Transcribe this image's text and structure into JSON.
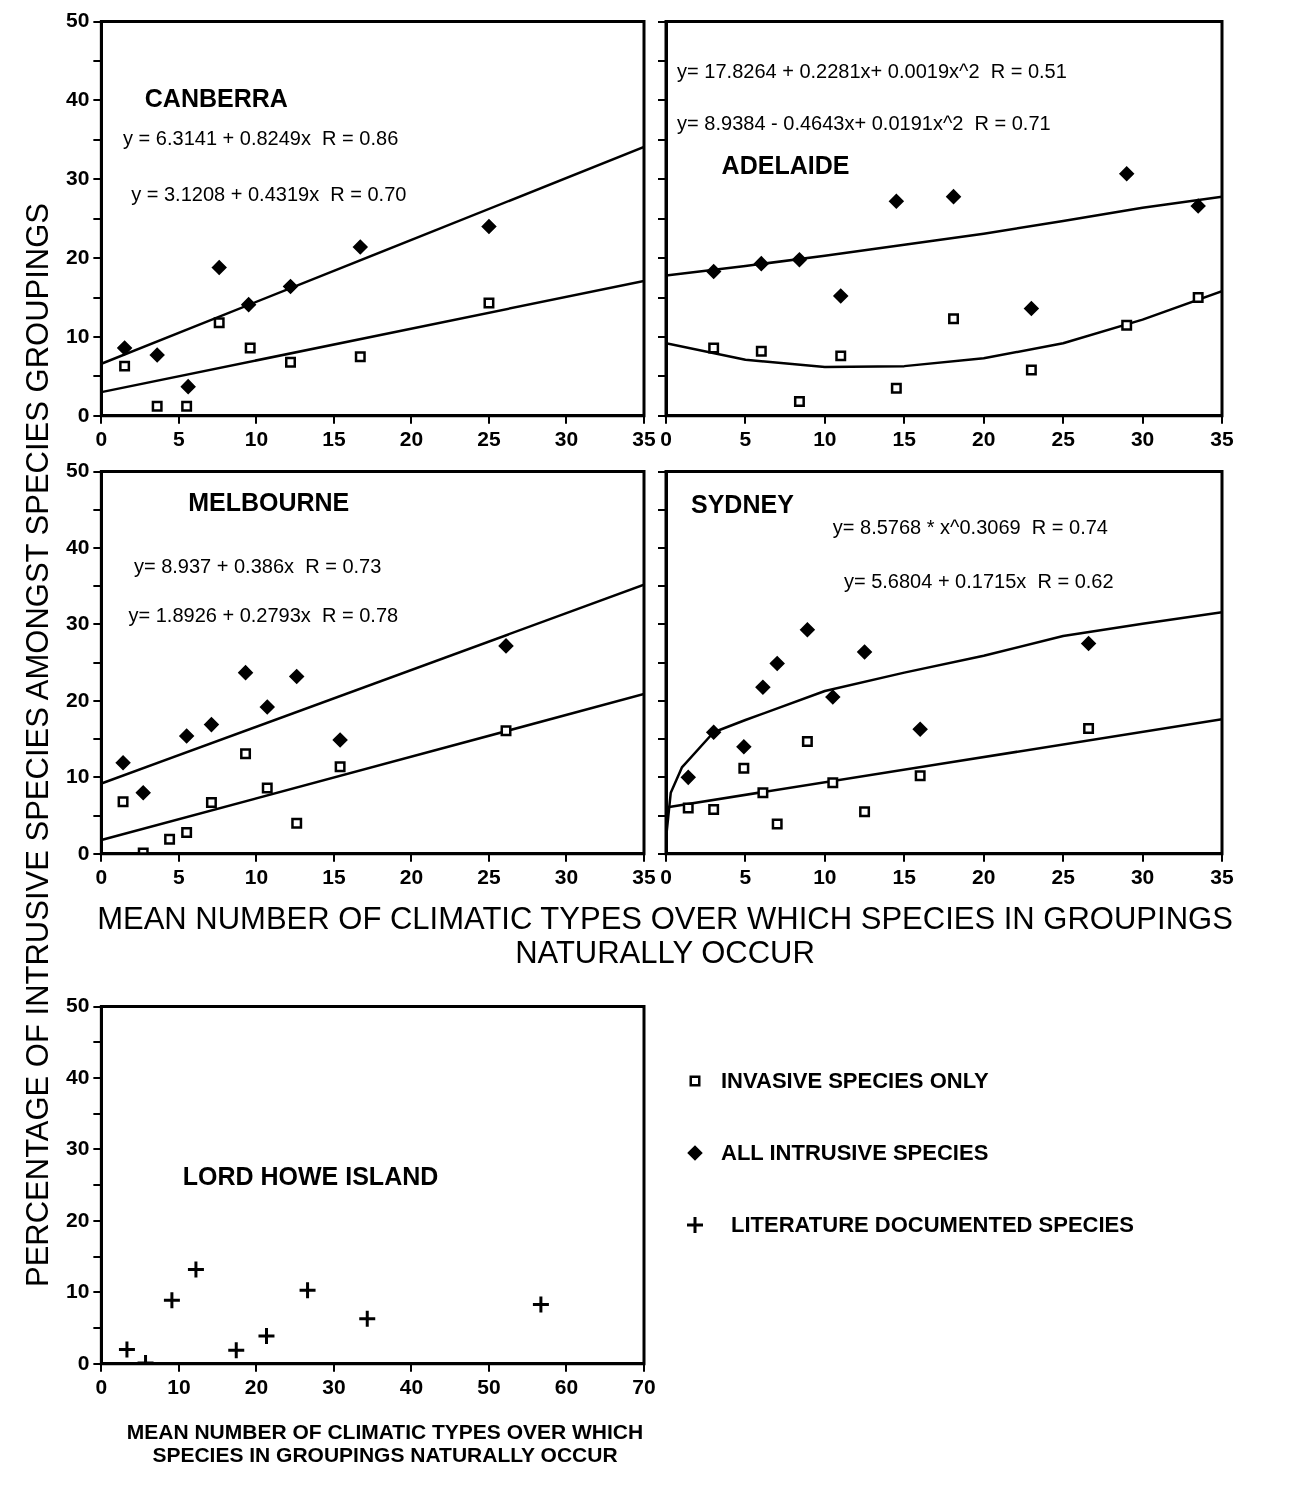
{
  "chart_data": [
    {
      "type": "scatter",
      "title": "CANBERRA",
      "ylabel": "PERCENTAGE OF INTRUSIVE SPECIES AMONGST SPECIES GROUPINGS",
      "annotations": [
        "y = 6.3141 + 0.8249x  R = 0.86",
        "y = 3.1208 + 0.4319x  R = 0.70"
      ],
      "xlim": [
        0,
        35
      ],
      "xticks": [
        0,
        5,
        10,
        15,
        20,
        25,
        30,
        35
      ],
      "ylim": [
        0,
        50
      ],
      "yticks": [
        0,
        {
          "value": 5,
          "label": null
        },
        10,
        {
          "value": 15,
          "label": null
        },
        20,
        {
          "value": 25,
          "label": null
        },
        30,
        {
          "value": 35,
          "label": null
        },
        40,
        {
          "value": 45,
          "label": null
        },
        50
      ],
      "grid": false,
      "legend": "bottom right",
      "series": [
        {
          "name": "INVASIVE SPECIES ONLY",
          "color": "#000000",
          "marker": "square",
          "x": [
            1.5,
            3.6,
            5.5,
            7.6,
            9.6,
            12.2,
            16.7,
            25.0
          ],
          "values": [
            6.3,
            1.2,
            1.2,
            11.8,
            8.6,
            6.8,
            7.5,
            14.3
          ]
        },
        {
          "name": "ALL INTRUSIVE SPECIES",
          "color": "#000000",
          "marker": "diamond",
          "x": [
            1.5,
            3.6,
            5.6,
            7.6,
            9.5,
            12.2,
            16.7,
            25.0
          ],
          "values": [
            8.6,
            7.7,
            3.7,
            18.8,
            14.1,
            16.4,
            21.4,
            24.0
          ]
        },
        {
          "type": "line",
          "color": "#000000",
          "marker": "none",
          "x": [
            0,
            35
          ],
          "values": [
            6.6,
            34.1
          ]
        },
        {
          "type": "line",
          "color": "#000000",
          "marker": "none",
          "x": [
            0,
            35
          ],
          "values": [
            3.0,
            17.1
          ]
        }
      ]
    },
    {
      "type": "scatter",
      "title": "ADELAIDE",
      "annotations": [
        "y= 17.8264 + 0.2281x+ 0.0019x^2  R = 0.51",
        "y= 8.9384 - 0.4643x+ 0.0191x^2  R = 0.71"
      ],
      "xlim": [
        0,
        35
      ],
      "xticks": [
        0,
        5,
        10,
        15,
        20,
        25,
        30,
        35
      ],
      "ylim": [
        0,
        50
      ],
      "yticks": [
        0,
        {
          "value": 5,
          "label": null
        },
        10,
        {
          "value": 15,
          "label": null
        },
        20,
        {
          "value": 25,
          "label": null
        },
        30,
        {
          "value": 35,
          "label": null
        },
        40,
        {
          "value": 45,
          "label": null
        },
        50
      ],
      "grid": false,
      "tick_labels": "x",
      "series": [
        {
          "color": "#000000",
          "marker": "square",
          "x": [
            3.0,
            6.0,
            8.4,
            11.0,
            14.5,
            18.1,
            23.0,
            29.0,
            33.5
          ],
          "values": [
            8.6,
            8.2,
            1.8,
            7.6,
            3.5,
            12.3,
            5.8,
            11.5,
            15.0
          ]
        },
        {
          "color": "#000000",
          "marker": "diamond",
          "x": [
            3.0,
            6.0,
            8.4,
            11.0,
            14.5,
            18.1,
            23.0,
            29.0,
            33.5
          ],
          "values": [
            18.3,
            19.3,
            19.8,
            15.2,
            27.2,
            27.8,
            13.6,
            30.7,
            26.6
          ]
        },
        {
          "type": "line",
          "color": "#000000",
          "marker": "none",
          "x": [
            0,
            5,
            10,
            15,
            20,
            25,
            30,
            35
          ],
          "values": [
            17.8,
            19.0,
            20.3,
            21.7,
            23.1,
            24.7,
            26.4,
            27.8
          ]
        },
        {
          "type": "line",
          "color": "#000000",
          "marker": "none",
          "x": [
            0,
            5,
            10,
            15,
            20,
            25,
            30,
            35
          ],
          "values": [
            9.2,
            7.1,
            6.2,
            6.3,
            7.3,
            9.2,
            12.2,
            15.8
          ]
        }
      ]
    },
    {
      "type": "scatter",
      "title": "MELBOURNE",
      "xlabel": "MEAN NUMBER OF CLIMATIC TYPES OVER WHICH SPECIES IN GROUPINGS NATURALLY OCCUR",
      "annotations": [
        "y= 8.937 + 0.386x  R = 0.73",
        "y= 1.8926 + 0.2793x  R = 0.78"
      ],
      "xlim": [
        0,
        35
      ],
      "xticks": [
        0,
        5,
        10,
        15,
        20,
        25,
        30,
        35
      ],
      "ylim": [
        0,
        50
      ],
      "yticks": [
        0,
        {
          "value": 5,
          "label": null
        },
        10,
        {
          "value": 15,
          "label": null
        },
        20,
        {
          "value": 25,
          "label": null
        },
        30,
        {
          "value": 35,
          "label": null
        },
        40,
        {
          "value": 45,
          "label": null
        },
        50
      ],
      "grid": false,
      "series": [
        {
          "color": "#000000",
          "marker": "square",
          "x": [
            1.4,
            2.7,
            4.4,
            5.5,
            7.1,
            9.3,
            10.7,
            12.6,
            15.4,
            26.1
          ],
          "values": [
            6.8,
            0.1,
            1.9,
            2.8,
            6.7,
            13.1,
            8.6,
            4.0,
            11.4,
            16.1
          ]
        },
        {
          "color": "#000000",
          "marker": "diamond",
          "x": [
            1.4,
            2.7,
            5.5,
            7.1,
            9.3,
            10.7,
            12.6,
            15.4,
            26.1
          ],
          "values": [
            11.9,
            8.0,
            15.4,
            16.9,
            23.7,
            19.2,
            23.2,
            14.9,
            27.2
          ]
        },
        {
          "type": "line",
          "color": "#000000",
          "marker": "none",
          "x": [
            0,
            35
          ],
          "values": [
            9.2,
            35.2
          ]
        },
        {
          "type": "line",
          "color": "#000000",
          "marker": "none",
          "x": [
            0,
            35
          ],
          "values": [
            1.8,
            20.9
          ]
        }
      ]
    },
    {
      "type": "scatter",
      "title": "SYDNEY",
      "annotations": [
        "y= 8.5768 * x^0.3069  R = 0.74",
        "y= 5.6804 + 0.1715x  R = 0.62"
      ],
      "xlim": [
        0,
        35
      ],
      "xticks": [
        0,
        5,
        10,
        15,
        20,
        25,
        30,
        35
      ],
      "ylim": [
        0,
        50
      ],
      "yticks": [
        0,
        {
          "value": 5,
          "label": null
        },
        10,
        {
          "value": 15,
          "label": null
        },
        20,
        {
          "value": 25,
          "label": null
        },
        30,
        {
          "value": 35,
          "label": null
        },
        40,
        {
          "value": 45,
          "label": null
        },
        50
      ],
      "grid": false,
      "tick_labels": "x",
      "series": [
        {
          "color": "#000000",
          "marker": "square",
          "x": [
            1.4,
            3.0,
            4.9,
            6.1,
            7.0,
            8.9,
            10.5,
            12.5,
            16.0,
            26.6
          ],
          "values": [
            6.0,
            5.8,
            11.2,
            8.0,
            3.9,
            14.7,
            9.3,
            5.5,
            10.2,
            16.4
          ]
        },
        {
          "color": "#000000",
          "marker": "diamond",
          "x": [
            1.4,
            3.0,
            4.9,
            6.1,
            7.0,
            8.9,
            10.5,
            12.5,
            16.0,
            26.6
          ],
          "values": [
            10.0,
            15.9,
            14.0,
            21.8,
            24.9,
            29.3,
            20.5,
            26.4,
            16.3,
            27.5
          ]
        },
        {
          "type": "line",
          "color": "#000000",
          "marker": "none",
          "x": [
            0.05,
            0.3,
            1,
            3,
            5,
            10,
            15,
            20,
            25,
            30,
            35
          ],
          "values": [
            3.0,
            8.0,
            11.3,
            15.9,
            17.5,
            21.3,
            23.7,
            25.9,
            28.5,
            30.1,
            31.6
          ]
        },
        {
          "type": "line",
          "color": "#000000",
          "marker": "none",
          "x": [
            0.1,
            35
          ],
          "values": [
            6.1,
            17.6
          ]
        }
      ]
    },
    {
      "type": "scatter",
      "title": "LORD HOWE ISLAND",
      "xlabel": "MEAN NUMBER OF CLIMATIC TYPES OVER WHICH SPECIES IN GROUPINGS NATURALLY OCCUR",
      "xlim": [
        0,
        70
      ],
      "xticks": [
        0,
        10,
        20,
        30,
        40,
        50,
        60,
        70
      ],
      "ylim": [
        0,
        50
      ],
      "yticks": [
        0,
        {
          "value": 5,
          "label": null
        },
        10,
        {
          "value": 15,
          "label": null
        },
        20,
        {
          "value": 25,
          "label": null
        },
        30,
        {
          "value": 35,
          "label": null
        },
        40,
        {
          "value": 45,
          "label": null
        },
        50
      ],
      "grid": false,
      "series": [
        {
          "name": "LITERATURE  DOCUMENTED  SPECIES",
          "color": "#000000",
          "marker": "cross",
          "x": [
            3.3,
            5.7,
            9.1,
            12.2,
            17.4,
            21.3,
            26.6,
            34.3,
            56.7
          ],
          "values": [
            2.0,
            0.1,
            8.9,
            13.2,
            1.9,
            3.9,
            10.3,
            6.3,
            8.3
          ]
        }
      ]
    }
  ]
}
